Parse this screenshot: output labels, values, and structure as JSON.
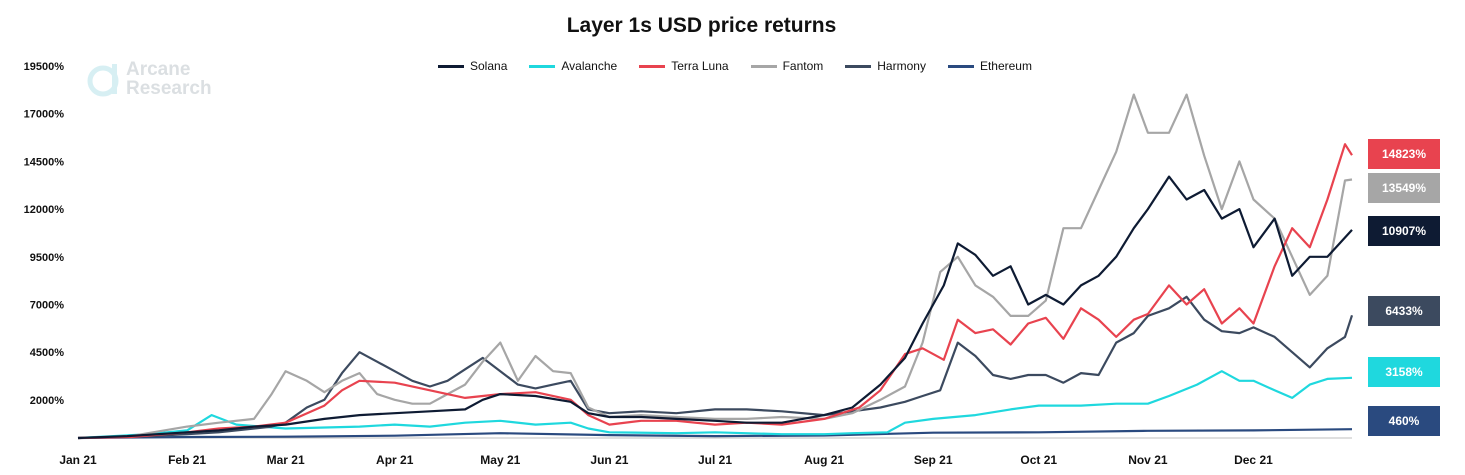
{
  "chart_data": {
    "type": "line",
    "title": "Layer 1s USD price returns",
    "watermark": [
      "Arcane",
      "Research"
    ],
    "y_ticks": [
      "19500%",
      "17000%",
      "14500%",
      "12000%",
      "9500%",
      "7000%",
      "4500%",
      "2000%"
    ],
    "y_tick_values": [
      19500,
      17000,
      14500,
      12000,
      9500,
      7000,
      4500,
      2000
    ],
    "ylim": [
      0,
      19500
    ],
    "x_ticks": [
      "Jan 21",
      "Feb 21",
      "Mar 21",
      "Apr 21",
      "May 21",
      "Jun 21",
      "Jul 21",
      "Aug 21",
      "Sep 21",
      "Oct 21",
      "Nov 21",
      "Dec 21"
    ],
    "x_tick_days": [
      0,
      31,
      59,
      90,
      120,
      151,
      181,
      212,
      243,
      273,
      304,
      334
    ],
    "x_range_days": [
      0,
      362
    ],
    "legend": "top-center",
    "grid": false,
    "series": [
      {
        "name": "Solana",
        "color": "#0e1b33",
        "end_label": "10907%",
        "points": [
          [
            0,
            0
          ],
          [
            14,
            100
          ],
          [
            31,
            300
          ],
          [
            40,
            400
          ],
          [
            50,
            600
          ],
          [
            59,
            700
          ],
          [
            70,
            1000
          ],
          [
            80,
            1200
          ],
          [
            90,
            1300
          ],
          [
            100,
            1400
          ],
          [
            110,
            1500
          ],
          [
            115,
            2000
          ],
          [
            120,
            2300
          ],
          [
            130,
            2200
          ],
          [
            140,
            1900
          ],
          [
            145,
            1300
          ],
          [
            151,
            1100
          ],
          [
            160,
            1100
          ],
          [
            170,
            1000
          ],
          [
            181,
            900
          ],
          [
            190,
            800
          ],
          [
            200,
            800
          ],
          [
            212,
            1200
          ],
          [
            220,
            1600
          ],
          [
            228,
            2800
          ],
          [
            235,
            4200
          ],
          [
            240,
            6000
          ],
          [
            246,
            8000
          ],
          [
            250,
            10200
          ],
          [
            255,
            9600
          ],
          [
            260,
            8500
          ],
          [
            265,
            9000
          ],
          [
            270,
            7000
          ],
          [
            275,
            7500
          ],
          [
            280,
            7000
          ],
          [
            285,
            8000
          ],
          [
            290,
            8500
          ],
          [
            295,
            9500
          ],
          [
            300,
            11000
          ],
          [
            304,
            12000
          ],
          [
            310,
            13700
          ],
          [
            315,
            12500
          ],
          [
            320,
            13000
          ],
          [
            325,
            11500
          ],
          [
            330,
            12000
          ],
          [
            334,
            10000
          ],
          [
            340,
            11500
          ],
          [
            345,
            8500
          ],
          [
            350,
            9500
          ],
          [
            355,
            9500
          ],
          [
            362,
            10907
          ]
        ]
      },
      {
        "name": "Avalanche",
        "color": "#1fd8de",
        "end_label": "3158%",
        "points": [
          [
            0,
            0
          ],
          [
            20,
            200
          ],
          [
            31,
            400
          ],
          [
            38,
            1200
          ],
          [
            45,
            700
          ],
          [
            59,
            500
          ],
          [
            80,
            600
          ],
          [
            90,
            700
          ],
          [
            100,
            600
          ],
          [
            110,
            800
          ],
          [
            120,
            900
          ],
          [
            130,
            700
          ],
          [
            140,
            800
          ],
          [
            145,
            500
          ],
          [
            151,
            300
          ],
          [
            170,
            250
          ],
          [
            181,
            300
          ],
          [
            200,
            200
          ],
          [
            212,
            200
          ],
          [
            220,
            250
          ],
          [
            230,
            300
          ],
          [
            235,
            800
          ],
          [
            243,
            1000
          ],
          [
            255,
            1200
          ],
          [
            265,
            1500
          ],
          [
            273,
            1700
          ],
          [
            285,
            1700
          ],
          [
            295,
            1800
          ],
          [
            304,
            1800
          ],
          [
            310,
            2200
          ],
          [
            318,
            2800
          ],
          [
            325,
            3500
          ],
          [
            330,
            3000
          ],
          [
            334,
            3000
          ],
          [
            340,
            2500
          ],
          [
            345,
            2100
          ],
          [
            350,
            2800
          ],
          [
            355,
            3100
          ],
          [
            362,
            3158
          ]
        ]
      },
      {
        "name": "Terra Luna",
        "color": "#e8434f",
        "end_label": "14823%",
        "points": [
          [
            0,
            0
          ],
          [
            15,
            50
          ],
          [
            31,
            300
          ],
          [
            40,
            500
          ],
          [
            50,
            600
          ],
          [
            59,
            800
          ],
          [
            70,
            1700
          ],
          [
            75,
            2500
          ],
          [
            80,
            3000
          ],
          [
            90,
            2900
          ],
          [
            100,
            2500
          ],
          [
            110,
            2100
          ],
          [
            120,
            2300
          ],
          [
            130,
            2400
          ],
          [
            140,
            2000
          ],
          [
            145,
            1200
          ],
          [
            151,
            700
          ],
          [
            160,
            900
          ],
          [
            170,
            900
          ],
          [
            181,
            700
          ],
          [
            190,
            800
          ],
          [
            200,
            700
          ],
          [
            212,
            1000
          ],
          [
            222,
            1600
          ],
          [
            228,
            2500
          ],
          [
            235,
            4400
          ],
          [
            240,
            4700
          ],
          [
            246,
            4100
          ],
          [
            250,
            6200
          ],
          [
            255,
            5500
          ],
          [
            260,
            5700
          ],
          [
            265,
            4900
          ],
          [
            270,
            6000
          ],
          [
            275,
            6300
          ],
          [
            280,
            5200
          ],
          [
            285,
            6800
          ],
          [
            290,
            6200
          ],
          [
            295,
            5300
          ],
          [
            300,
            6200
          ],
          [
            304,
            6500
          ],
          [
            310,
            8000
          ],
          [
            315,
            7000
          ],
          [
            320,
            7800
          ],
          [
            325,
            6000
          ],
          [
            330,
            6800
          ],
          [
            334,
            6000
          ],
          [
            340,
            9000
          ],
          [
            345,
            11000
          ],
          [
            350,
            10000
          ],
          [
            355,
            12500
          ],
          [
            360,
            15400
          ],
          [
            362,
            14823
          ]
        ]
      },
      {
        "name": "Fantom",
        "color": "#a6a6a6",
        "end_label": "13549%",
        "points": [
          [
            0,
            0
          ],
          [
            15,
            100
          ],
          [
            31,
            600
          ],
          [
            40,
            800
          ],
          [
            50,
            1000
          ],
          [
            55,
            2300
          ],
          [
            59,
            3500
          ],
          [
            65,
            3000
          ],
          [
            70,
            2400
          ],
          [
            75,
            3000
          ],
          [
            80,
            3400
          ],
          [
            85,
            2300
          ],
          [
            90,
            2000
          ],
          [
            95,
            1800
          ],
          [
            100,
            1800
          ],
          [
            105,
            2300
          ],
          [
            110,
            2800
          ],
          [
            115,
            4000
          ],
          [
            120,
            5000
          ],
          [
            125,
            3000
          ],
          [
            130,
            4300
          ],
          [
            135,
            3500
          ],
          [
            140,
            3400
          ],
          [
            145,
            1600
          ],
          [
            151,
            1100
          ],
          [
            160,
            1200
          ],
          [
            170,
            1100
          ],
          [
            181,
            1000
          ],
          [
            190,
            1000
          ],
          [
            200,
            1100
          ],
          [
            212,
            1000
          ],
          [
            220,
            1300
          ],
          [
            228,
            2000
          ],
          [
            235,
            2700
          ],
          [
            240,
            5000
          ],
          [
            245,
            8700
          ],
          [
            250,
            9500
          ],
          [
            255,
            8000
          ],
          [
            260,
            7400
          ],
          [
            265,
            6400
          ],
          [
            270,
            6400
          ],
          [
            275,
            7200
          ],
          [
            280,
            11000
          ],
          [
            285,
            11000
          ],
          [
            290,
            13000
          ],
          [
            295,
            15000
          ],
          [
            300,
            18000
          ],
          [
            304,
            16000
          ],
          [
            310,
            16000
          ],
          [
            315,
            18000
          ],
          [
            320,
            14800
          ],
          [
            325,
            12000
          ],
          [
            330,
            14500
          ],
          [
            334,
            12500
          ],
          [
            340,
            11500
          ],
          [
            345,
            9500
          ],
          [
            350,
            7500
          ],
          [
            355,
            8500
          ],
          [
            360,
            13500
          ],
          [
            362,
            13549
          ]
        ]
      },
      {
        "name": "Harmony",
        "color": "#3c4a5f",
        "end_label": "6433%",
        "points": [
          [
            0,
            0
          ],
          [
            20,
            100
          ],
          [
            31,
            200
          ],
          [
            40,
            300
          ],
          [
            50,
            500
          ],
          [
            55,
            600
          ],
          [
            59,
            800
          ],
          [
            65,
            1600
          ],
          [
            70,
            2000
          ],
          [
            75,
            3400
          ],
          [
            80,
            4500
          ],
          [
            85,
            4000
          ],
          [
            90,
            3500
          ],
          [
            95,
            3000
          ],
          [
            100,
            2700
          ],
          [
            105,
            3000
          ],
          [
            110,
            3600
          ],
          [
            115,
            4200
          ],
          [
            120,
            3500
          ],
          [
            125,
            2800
          ],
          [
            130,
            2600
          ],
          [
            135,
            2800
          ],
          [
            140,
            3000
          ],
          [
            145,
            1500
          ],
          [
            151,
            1300
          ],
          [
            160,
            1400
          ],
          [
            170,
            1300
          ],
          [
            181,
            1500
          ],
          [
            190,
            1500
          ],
          [
            200,
            1400
          ],
          [
            212,
            1200
          ],
          [
            220,
            1400
          ],
          [
            228,
            1600
          ],
          [
            235,
            1900
          ],
          [
            240,
            2200
          ],
          [
            245,
            2500
          ],
          [
            250,
            5000
          ],
          [
            255,
            4300
          ],
          [
            260,
            3300
          ],
          [
            265,
            3100
          ],
          [
            270,
            3300
          ],
          [
            275,
            3300
          ],
          [
            280,
            2900
          ],
          [
            285,
            3400
          ],
          [
            290,
            3300
          ],
          [
            295,
            5000
          ],
          [
            300,
            5500
          ],
          [
            304,
            6400
          ],
          [
            310,
            6800
          ],
          [
            315,
            7400
          ],
          [
            320,
            6200
          ],
          [
            325,
            5600
          ],
          [
            330,
            5500
          ],
          [
            334,
            5800
          ],
          [
            340,
            5300
          ],
          [
            345,
            4500
          ],
          [
            350,
            3700
          ],
          [
            355,
            4700
          ],
          [
            360,
            5300
          ],
          [
            362,
            6433
          ]
        ]
      },
      {
        "name": "Ethereum",
        "color": "#2a4a7f",
        "end_label": "460%",
        "points": [
          [
            0,
            0
          ],
          [
            31,
            50
          ],
          [
            59,
            70
          ],
          [
            90,
            120
          ],
          [
            120,
            250
          ],
          [
            151,
            150
          ],
          [
            181,
            100
          ],
          [
            212,
            130
          ],
          [
            243,
            280
          ],
          [
            273,
            300
          ],
          [
            304,
            380
          ],
          [
            334,
            400
          ],
          [
            362,
            460
          ]
        ]
      }
    ]
  }
}
